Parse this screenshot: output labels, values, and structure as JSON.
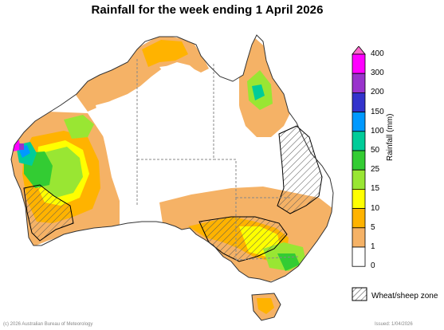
{
  "title": "Rainfall for the week ending 1 April 2026",
  "legend": {
    "axis_title": "Rainfall (mm)",
    "stops": [
      {
        "label": "400",
        "color": "#ff66cc"
      },
      {
        "label": "300",
        "color": "#ff00ff"
      },
      {
        "label": "200",
        "color": "#9933cc"
      },
      {
        "label": "150",
        "color": "#3333cc"
      },
      {
        "label": "100",
        "color": "#0099ff"
      },
      {
        "label": "50",
        "color": "#00cc99"
      },
      {
        "label": "25",
        "color": "#33cc33"
      },
      {
        "label": "15",
        "color": "#99e633"
      },
      {
        "label": "10",
        "color": "#ffff00"
      },
      {
        "label": "5",
        "color": "#ffb300"
      },
      {
        "label": "1",
        "color": "#f5b266"
      },
      {
        "label": "0",
        "color": "#ffffff"
      }
    ]
  },
  "wheat_zone_label": "Wheat/sheep zone",
  "footer_left": "(c) 2026 Australian Bureau of Meteorology",
  "footer_right": "Issued: 1/04/2026"
}
